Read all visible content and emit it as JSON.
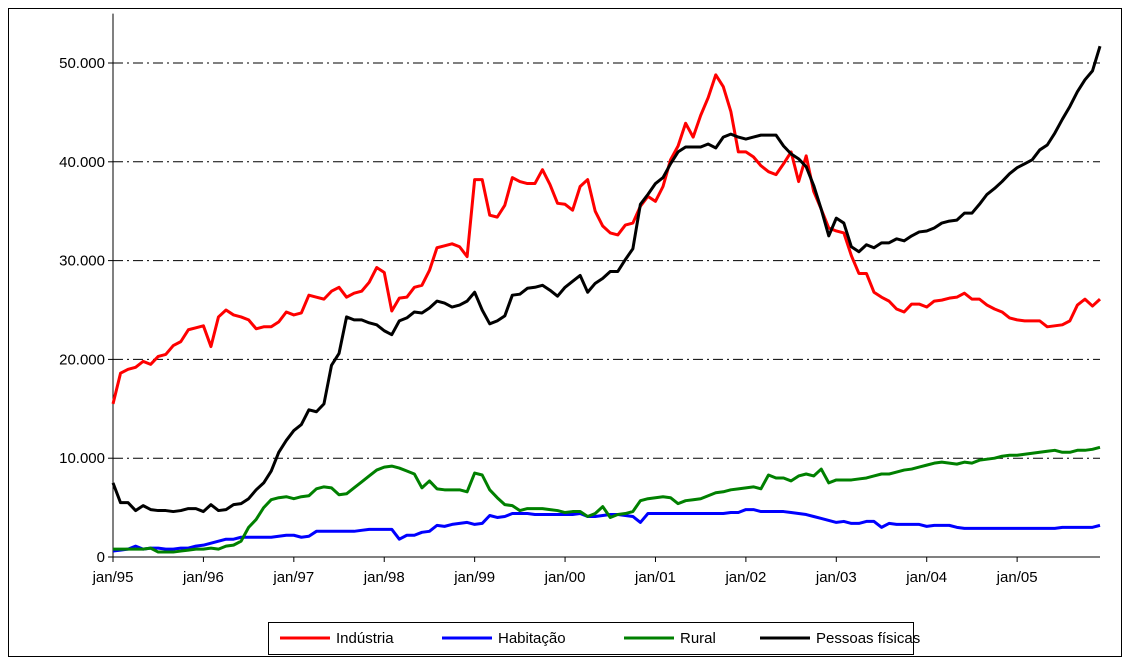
{
  "chart_data": {
    "type": "line",
    "categories": [
      "jan/95",
      null,
      null,
      null,
      null,
      null,
      null,
      null,
      null,
      null,
      null,
      null,
      "jan/96",
      null,
      null,
      null,
      null,
      null,
      null,
      null,
      null,
      null,
      null,
      null,
      "jan/97",
      null,
      null,
      null,
      null,
      null,
      null,
      null,
      null,
      null,
      null,
      null,
      "jan/98",
      null,
      null,
      null,
      null,
      null,
      null,
      null,
      null,
      null,
      null,
      null,
      "jan/99",
      null,
      null,
      null,
      null,
      null,
      null,
      null,
      null,
      null,
      null,
      null,
      "jan/00",
      null,
      null,
      null,
      null,
      null,
      null,
      null,
      null,
      null,
      null,
      null,
      "jan/01",
      null,
      null,
      null,
      null,
      null,
      null,
      null,
      null,
      null,
      null,
      null,
      "jan/02",
      null,
      null,
      null,
      null,
      null,
      null,
      null,
      null,
      null,
      null,
      null,
      "jan/03",
      null,
      null,
      null,
      null,
      null,
      null,
      null,
      null,
      null,
      null,
      null,
      "jan/04",
      null,
      null,
      null,
      null,
      null,
      null,
      null,
      null,
      null,
      null,
      null,
      "jan/05",
      null,
      null,
      null,
      null,
      null,
      null,
      null,
      null,
      null,
      null,
      null
    ],
    "series": [
      {
        "name": "Indústria",
        "color": "#ff0000",
        "values": [
          15500,
          18600,
          19000,
          19200,
          19800,
          19500,
          20300,
          20500,
          21400,
          21800,
          23000,
          23200,
          23400,
          21300,
          24300,
          25000,
          24500,
          24300,
          24000,
          23100,
          23300,
          23300,
          23800,
          24800,
          24500,
          24700,
          26500,
          26300,
          26100,
          26900,
          27300,
          26300,
          26700,
          26900,
          27800,
          29300,
          28800,
          24900,
          26200,
          26300,
          27300,
          27500,
          29000,
          31300,
          31500,
          31700,
          31400,
          30400,
          38200,
          38200,
          34600,
          34400,
          35600,
          38400,
          38000,
          37800,
          37800,
          39200,
          37700,
          35800,
          35700,
          35100,
          37500,
          38200,
          35000,
          33500,
          32800,
          32600,
          33600,
          33800,
          35500,
          36500,
          36000,
          37500,
          40200,
          41600,
          43900,
          42500,
          44700,
          46500,
          48800,
          47600,
          45100,
          41000,
          41000,
          40500,
          39600,
          39000,
          38700,
          39800,
          41000,
          38000,
          40600,
          37000,
          35200,
          33300,
          33000,
          32800,
          30500,
          28700,
          28700,
          26800,
          26300,
          25900,
          25100,
          24800,
          25600,
          25600,
          25300,
          25900,
          26000,
          26200,
          26300,
          26700,
          26100,
          26100,
          25500,
          25100,
          24800,
          24200,
          24000,
          23900,
          23900,
          23900,
          23300,
          23400,
          23500,
          23900,
          25500,
          26100,
          25400,
          26100
        ]
      },
      {
        "name": "Habitação",
        "color": "#0000ff",
        "values": [
          600,
          700,
          800,
          1100,
          800,
          900,
          900,
          800,
          800,
          900,
          900,
          1100,
          1200,
          1400,
          1600,
          1800,
          1800,
          2000,
          2000,
          2000,
          2000,
          2000,
          2100,
          2200,
          2200,
          2000,
          2100,
          2600,
          2600,
          2600,
          2600,
          2600,
          2600,
          2700,
          2800,
          2800,
          2800,
          2800,
          1800,
          2200,
          2200,
          2500,
          2600,
          3200,
          3100,
          3300,
          3400,
          3500,
          3300,
          3400,
          4200,
          4000,
          4100,
          4400,
          4400,
          4400,
          4300,
          4300,
          4300,
          4300,
          4300,
          4300,
          4400,
          4100,
          4100,
          4200,
          4300,
          4300,
          4200,
          4100,
          3500,
          4400,
          4400,
          4400,
          4400,
          4400,
          4400,
          4400,
          4400,
          4400,
          4400,
          4400,
          4500,
          4500,
          4800,
          4800,
          4600,
          4600,
          4600,
          4600,
          4500,
          4400,
          4300,
          4100,
          3900,
          3700,
          3500,
          3600,
          3400,
          3400,
          3600,
          3600,
          3000,
          3400,
          3300,
          3300,
          3300,
          3300,
          3100,
          3200,
          3200,
          3200,
          3000,
          2900,
          2900,
          2900,
          2900,
          2900,
          2900,
          2900,
          2900,
          2900,
          2900,
          2900,
          2900,
          2900,
          3000,
          3000,
          3000,
          3000,
          3000,
          3200
        ]
      },
      {
        "name": "Rural",
        "color": "#008000",
        "values": [
          800,
          800,
          800,
          800,
          800,
          900,
          500,
          500,
          500,
          600,
          700,
          800,
          800,
          900,
          800,
          1100,
          1200,
          1600,
          3000,
          3800,
          5000,
          5800,
          6000,
          6100,
          5900,
          6100,
          6200,
          6900,
          7100,
          7000,
          6300,
          6400,
          7000,
          7600,
          8200,
          8800,
          9100,
          9200,
          9000,
          8700,
          8400,
          7000,
          7700,
          6900,
          6800,
          6800,
          6800,
          6600,
          8500,
          8300,
          6800,
          6000,
          5300,
          5200,
          4700,
          4900,
          4900,
          4900,
          4800,
          4700,
          4500,
          4600,
          4600,
          4100,
          4400,
          5100,
          4000,
          4300,
          4400,
          4600,
          5700,
          5900,
          6000,
          6100,
          6000,
          5400,
          5700,
          5800,
          5900,
          6200,
          6500,
          6600,
          6800,
          6900,
          7000,
          7100,
          6900,
          8300,
          8000,
          8000,
          7700,
          8200,
          8400,
          8200,
          8900,
          7500,
          7800,
          7800,
          7800,
          7900,
          8000,
          8200,
          8400,
          8400,
          8600,
          8800,
          8900,
          9100,
          9300,
          9500,
          9600,
          9500,
          9400,
          9600,
          9500,
          9800,
          9900,
          10000,
          10200,
          10300,
          10300,
          10400,
          10500,
          10600,
          10700,
          10800,
          10600,
          10600,
          10800,
          10800,
          10900,
          11100
        ]
      },
      {
        "name": "Pessoas físicas",
        "color": "#000000",
        "values": [
          7500,
          5500,
          5500,
          4700,
          5200,
          4800,
          4700,
          4700,
          4600,
          4700,
          4900,
          4900,
          4600,
          5300,
          4700,
          4800,
          5300,
          5400,
          5900,
          6800,
          7500,
          8700,
          10600,
          11800,
          12800,
          13400,
          14900,
          14700,
          15500,
          19400,
          20600,
          24300,
          24000,
          24000,
          23700,
          23500,
          22900,
          22500,
          23900,
          24200,
          24800,
          24700,
          25200,
          25900,
          25700,
          25300,
          25500,
          25900,
          26800,
          25000,
          23600,
          23900,
          24400,
          26500,
          26600,
          27200,
          27300,
          27500,
          27000,
          26400,
          27300,
          27900,
          28500,
          26800,
          27700,
          28200,
          28900,
          28900,
          30100,
          31200,
          35700,
          36700,
          37800,
          38400,
          39800,
          41000,
          41500,
          41500,
          41500,
          41800,
          41400,
          42500,
          42800,
          42500,
          42300,
          42500,
          42700,
          42700,
          42700,
          41600,
          40800,
          40300,
          39500,
          37600,
          35200,
          32500,
          34300,
          33800,
          31400,
          30900,
          31600,
          31300,
          31800,
          31800,
          32200,
          32000,
          32500,
          32900,
          33000,
          33300,
          33800,
          34000,
          34100,
          34800,
          34800,
          35700,
          36700,
          37300,
          38000,
          38800,
          39400,
          39800,
          40200,
          41200,
          41700,
          42900,
          44300,
          45600,
          47100,
          48300,
          49200,
          51700
        ]
      }
    ],
    "ylim": [
      0,
      55000
    ],
    "yticks": [
      0,
      {
        "value": 10000,
        "label": "10.000"
      },
      {
        "value": 20000,
        "label": "20.000"
      },
      {
        "value": 30000,
        "label": "30.000"
      },
      {
        "value": 40000,
        "label": "40.000"
      },
      {
        "value": 50000,
        "label": "50.000"
      }
    ],
    "grid": true,
    "legend": "bottom"
  }
}
